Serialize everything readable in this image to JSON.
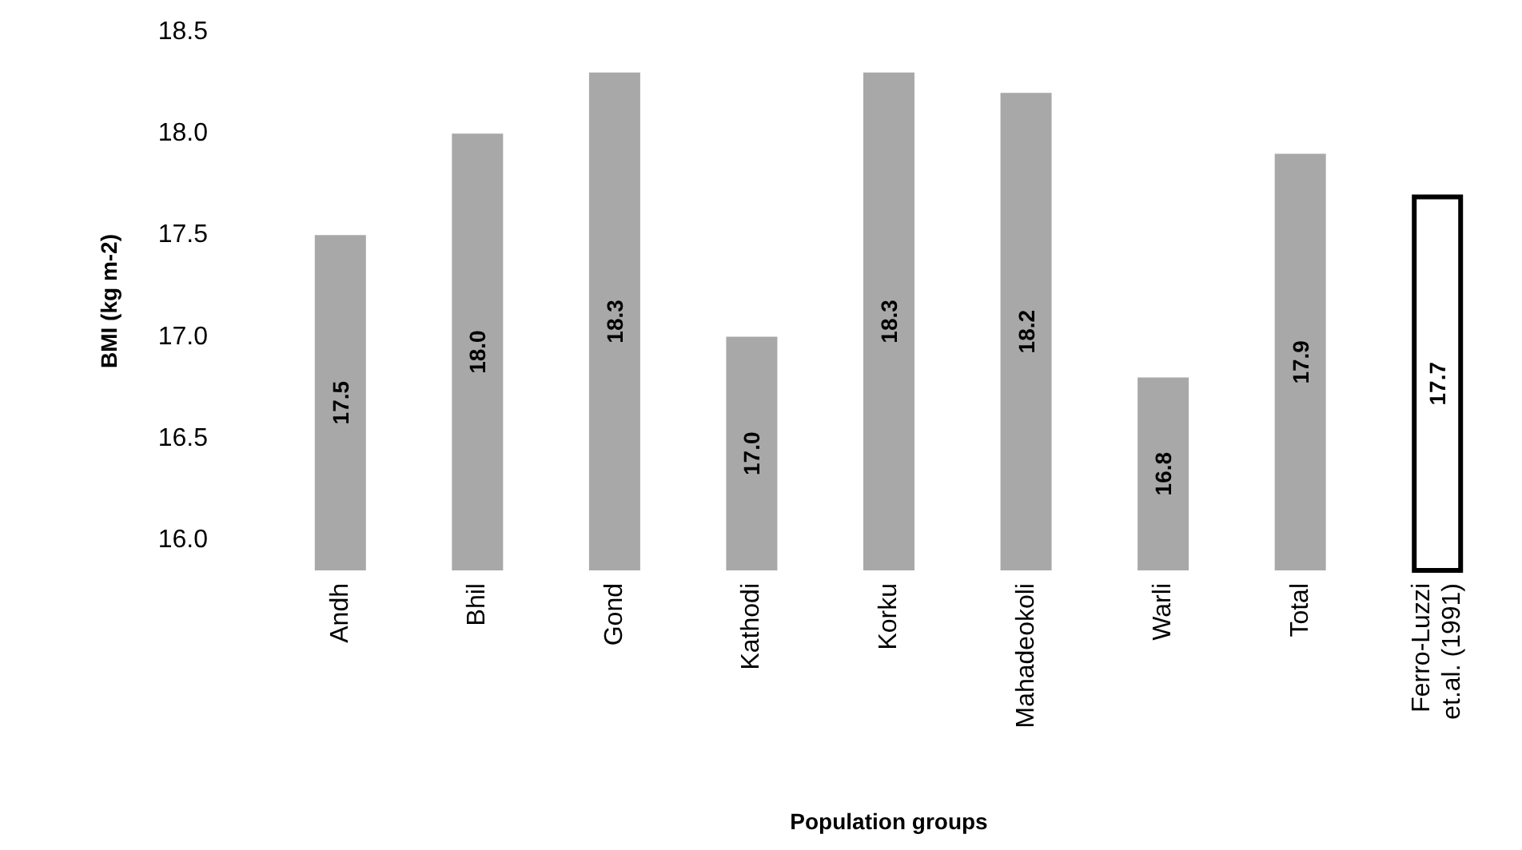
{
  "chart_data": {
    "type": "bar",
    "xlabel": "Population groups",
    "ylabel": "BMI (kg m-2)",
    "categories": [
      "Andh",
      "Bhil",
      "Gond",
      "Kathodi",
      "Korku",
      "Mahadeokoli",
      "Warli",
      "Total",
      "Ferro-Luzzi\net.al. (1991)"
    ],
    "values": [
      17.5,
      18.0,
      18.3,
      17.0,
      18.3,
      18.2,
      16.8,
      17.9,
      17.7
    ],
    "colors": [
      "#a8a8a8",
      "#a8a8a8",
      "#a8a8a8",
      "#a8a8a8",
      "#a8a8a8",
      "#a8a8a8",
      "#a8a8a8",
      "#a8a8a8",
      "#ffffff"
    ],
    "value_labels": [
      "17.5",
      "18.0",
      "18.3",
      "17.0",
      "18.3",
      "18.2",
      "16.8",
      "17.9",
      "17.7"
    ],
    "grid": false,
    "ylim": [
      15.85,
      18.5
    ],
    "yticks": [
      {
        "value": 16,
        "label": "16.0"
      },
      {
        "value": 16.5,
        "label": "16.5"
      },
      {
        "value": 17,
        "label": "17.0"
      },
      {
        "value": 17.5,
        "label": "17.5"
      },
      {
        "value": 18,
        "label": "18.0"
      },
      {
        "value": 18.5,
        "label": "18.5"
      }
    ]
  }
}
